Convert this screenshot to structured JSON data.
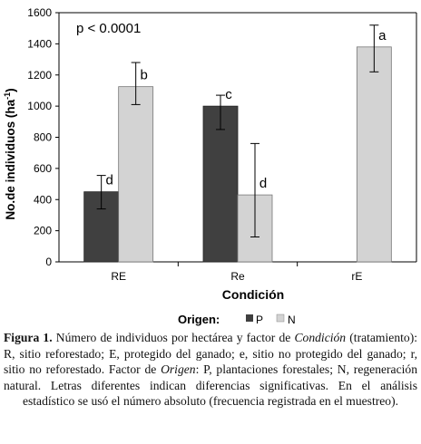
{
  "chart_data": {
    "type": "bar",
    "categories": [
      "RE",
      "Re",
      "rE"
    ],
    "series": [
      {
        "name": "P",
        "color": "#404040",
        "values": [
          450,
          1000,
          null
        ],
        "error_low": [
          340,
          850,
          null
        ],
        "error_high": [
          555,
          1070,
          null
        ],
        "letters": [
          "d",
          "c",
          ""
        ]
      },
      {
        "name": "N",
        "color": "#d3d3d3",
        "values": [
          1125,
          430,
          1380
        ],
        "error_low": [
          1010,
          160,
          1220
        ],
        "error_high": [
          1280,
          760,
          1520
        ],
        "letters": [
          "b",
          "d",
          "a"
        ]
      }
    ],
    "ylim": [
      0,
      1600
    ],
    "yticks": [
      "0",
      "200",
      "400",
      "600",
      "800",
      "1000",
      "1200",
      "1400",
      "1600"
    ],
    "ylabel_main": "No.de individuos (ha",
    "ylabel_sup": "-1",
    "ylabel_end": ")",
    "xlabel": "Condición",
    "annotation": "p < 0.0001",
    "legend": {
      "title": "Origen:",
      "position": "bottom",
      "items": [
        "P",
        "N"
      ]
    },
    "grid": false
  },
  "caption": {
    "label": "Figura 1.",
    "text_1": " Número de individuos por hectárea y factor de ",
    "factor_1": "Condición",
    "text_2": " (tratamiento): R, sitio reforestado; E, protegido del ganado; e, sitio no protegido del ganado; r, sitio no reforestado. Factor de ",
    "factor_2": "Origen",
    "text_3": ": P, plantaciones forestales; N, regeneración natural. Letras diferentes indican diferencias significativas. En el análisis estadístico se usó el número absoluto (frecuencia registrada en el muestreo)."
  }
}
